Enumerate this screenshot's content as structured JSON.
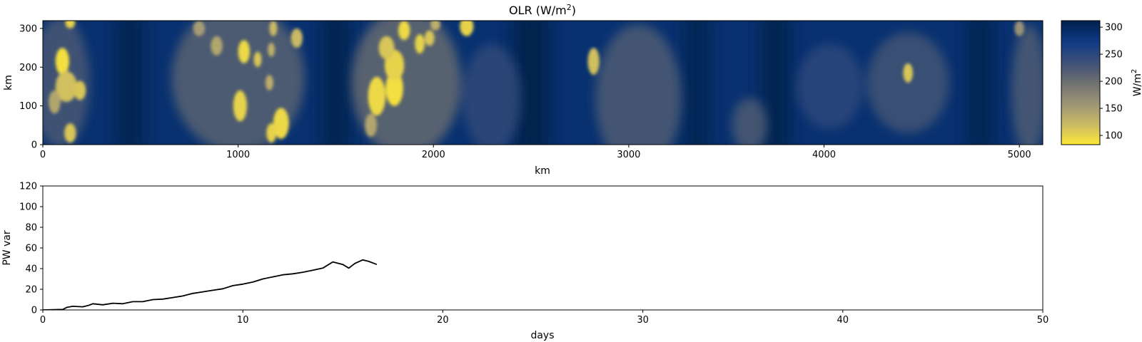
{
  "chart_data": [
    {
      "type": "heatmap",
      "title": "OLR (W/m",
      "title_sup": "2",
      "title_close": ")",
      "xlabel": "km",
      "ylabel": "km",
      "xlim": [
        0,
        5120
      ],
      "ylim": [
        0,
        320
      ],
      "xticks": [
        0,
        1000,
        2000,
        3000,
        4000,
        5000
      ],
      "yticks": [
        0,
        100,
        200,
        300
      ],
      "colormap": "cividis",
      "colormap_colors": [
        "#fee838",
        "#c8b866",
        "#9b9377",
        "#6e7070",
        "#3c4f79",
        "#0d3b85",
        "#00204c"
      ],
      "colorbar": {
        "label": "W/m",
        "label_sup": "2",
        "range": [
          83,
          312
        ],
        "ticks": [
          100,
          150,
          200,
          250,
          300
        ]
      },
      "field": {
        "background_olr": 288,
        "dark_bands_km": [
          {
            "x": 450,
            "w": 120
          },
          {
            "x": 1500,
            "w": 130
          },
          {
            "x": 2500,
            "w": 180
          },
          {
            "x": 3350,
            "w": 110
          },
          {
            "x": 3750,
            "w": 130
          },
          {
            "x": 4800,
            "w": 110
          }
        ],
        "haze_regions_km": [
          {
            "x": 90,
            "y": 160,
            "rx": 150,
            "ry": 170,
            "olr": 220
          },
          {
            "x": 1000,
            "y": 170,
            "rx": 340,
            "ry": 190,
            "olr": 205
          },
          {
            "x": 1860,
            "y": 160,
            "rx": 280,
            "ry": 190,
            "olr": 195
          },
          {
            "x": 2300,
            "y": 120,
            "rx": 150,
            "ry": 140,
            "olr": 240
          },
          {
            "x": 3050,
            "y": 120,
            "rx": 220,
            "ry": 190,
            "olr": 215
          },
          {
            "x": 3620,
            "y": 50,
            "rx": 90,
            "ry": 70,
            "olr": 215
          },
          {
            "x": 4030,
            "y": 150,
            "rx": 170,
            "ry": 110,
            "olr": 245
          },
          {
            "x": 4430,
            "y": 160,
            "rx": 210,
            "ry": 130,
            "olr": 225
          },
          {
            "x": 5050,
            "y": 140,
            "rx": 90,
            "ry": 170,
            "olr": 215
          }
        ],
        "convective_cells_km": [
          {
            "x": 100,
            "y": 215,
            "rx": 35,
            "ry": 35,
            "olr": 90
          },
          {
            "x": 120,
            "y": 150,
            "rx": 55,
            "ry": 40,
            "olr": 115
          },
          {
            "x": 190,
            "y": 140,
            "rx": 30,
            "ry": 25,
            "olr": 110
          },
          {
            "x": 140,
            "y": 315,
            "rx": 25,
            "ry": 15,
            "olr": 100
          },
          {
            "x": 140,
            "y": 30,
            "rx": 30,
            "ry": 25,
            "olr": 110
          },
          {
            "x": 60,
            "y": 110,
            "rx": 30,
            "ry": 30,
            "olr": 140
          },
          {
            "x": 1030,
            "y": 240,
            "rx": 30,
            "ry": 30,
            "olr": 95
          },
          {
            "x": 1100,
            "y": 220,
            "rx": 20,
            "ry": 20,
            "olr": 110
          },
          {
            "x": 1010,
            "y": 100,
            "rx": 35,
            "ry": 40,
            "olr": 100
          },
          {
            "x": 1220,
            "y": 55,
            "rx": 40,
            "ry": 40,
            "olr": 95
          },
          {
            "x": 1170,
            "y": 30,
            "rx": 25,
            "ry": 25,
            "olr": 100
          },
          {
            "x": 1160,
            "y": 160,
            "rx": 20,
            "ry": 20,
            "olr": 130
          },
          {
            "x": 1300,
            "y": 275,
            "rx": 30,
            "ry": 25,
            "olr": 120
          },
          {
            "x": 1180,
            "y": 300,
            "rx": 20,
            "ry": 20,
            "olr": 120
          },
          {
            "x": 890,
            "y": 255,
            "rx": 30,
            "ry": 25,
            "olr": 140
          },
          {
            "x": 800,
            "y": 300,
            "rx": 30,
            "ry": 20,
            "olr": 150
          },
          {
            "x": 1170,
            "y": 245,
            "rx": 18,
            "ry": 18,
            "olr": 130
          },
          {
            "x": 1710,
            "y": 125,
            "rx": 45,
            "ry": 50,
            "olr": 95
          },
          {
            "x": 1800,
            "y": 145,
            "rx": 45,
            "ry": 45,
            "olr": 90
          },
          {
            "x": 1800,
            "y": 205,
            "rx": 50,
            "ry": 40,
            "olr": 100
          },
          {
            "x": 1760,
            "y": 250,
            "rx": 40,
            "ry": 30,
            "olr": 110
          },
          {
            "x": 1850,
            "y": 295,
            "rx": 30,
            "ry": 25,
            "olr": 95
          },
          {
            "x": 1930,
            "y": 260,
            "rx": 25,
            "ry": 25,
            "olr": 100
          },
          {
            "x": 1980,
            "y": 275,
            "rx": 25,
            "ry": 20,
            "olr": 110
          },
          {
            "x": 2170,
            "y": 305,
            "rx": 35,
            "ry": 25,
            "olr": 100
          },
          {
            "x": 2010,
            "y": 310,
            "rx": 25,
            "ry": 15,
            "olr": 130
          },
          {
            "x": 1680,
            "y": 50,
            "rx": 30,
            "ry": 30,
            "olr": 140
          },
          {
            "x": 2820,
            "y": 215,
            "rx": 30,
            "ry": 35,
            "olr": 115
          },
          {
            "x": 4430,
            "y": 185,
            "rx": 25,
            "ry": 25,
            "olr": 110
          },
          {
            "x": 5000,
            "y": 300,
            "rx": 25,
            "ry": 20,
            "olr": 160
          }
        ]
      }
    },
    {
      "type": "line",
      "xlabel": "days",
      "ylabel": "PW var",
      "xlim": [
        0,
        50
      ],
      "ylim": [
        0,
        120
      ],
      "xticks": [
        0,
        10,
        20,
        30,
        40,
        50
      ],
      "yticks": [
        0,
        20,
        40,
        60,
        80,
        100,
        120
      ],
      "line_color": "#000000",
      "x": [
        0,
        1.0,
        1.2,
        1.5,
        2.0,
        2.3,
        2.5,
        3.0,
        3.5,
        4.0,
        4.5,
        5.0,
        5.5,
        6.0,
        6.5,
        7.0,
        7.5,
        8.0,
        8.5,
        9.0,
        9.5,
        10.0,
        10.5,
        11.0,
        11.5,
        12.0,
        12.5,
        13.0,
        13.5,
        14.0,
        14.5,
        15.0,
        15.3,
        15.6,
        16.0,
        16.3,
        16.7
      ],
      "y": [
        0,
        0.5,
        2.5,
        3.5,
        3.0,
        4.5,
        6.0,
        5.0,
        6.5,
        6.0,
        8.0,
        8.0,
        10.0,
        10.5,
        12.0,
        13.5,
        16.0,
        17.5,
        19.0,
        20.5,
        23.5,
        25.0,
        27.0,
        30.0,
        32.0,
        34.0,
        35.0,
        36.5,
        38.5,
        40.5,
        46.5,
        44.0,
        40.5,
        45.0,
        48.5,
        47.0,
        44.0
      ]
    }
  ]
}
